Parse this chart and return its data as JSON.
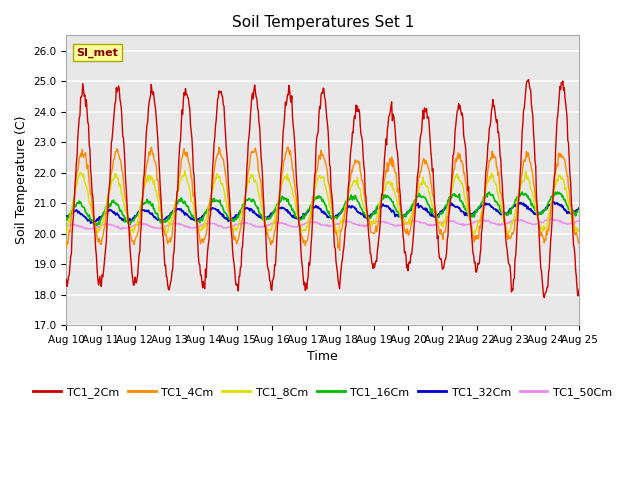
{
  "title": "Soil Temperatures Set 1",
  "xlabel": "Time",
  "ylabel": "Soil Temperature (C)",
  "ylim": [
    17.0,
    26.5
  ],
  "xlim": [
    0,
    15.0
  ],
  "yticks": [
    17.0,
    18.0,
    19.0,
    20.0,
    21.0,
    22.0,
    23.0,
    24.0,
    25.0,
    26.0
  ],
  "xtick_labels": [
    "Aug 10",
    "Aug 11",
    "Aug 12",
    "Aug 13",
    "Aug 14",
    "Aug 15",
    "Aug 16",
    "Aug 17",
    "Aug 18",
    "Aug 19",
    "Aug 20",
    "Aug 21",
    "Aug 22",
    "Aug 23",
    "Aug 24",
    "Aug 25"
  ],
  "annotation_text": "SI_met",
  "series_colors": {
    "TC1_2Cm": "#cc0000",
    "TC1_4Cm": "#ff8800",
    "TC1_8Cm": "#dddd00",
    "TC1_16Cm": "#00bb00",
    "TC1_32Cm": "#0000cc",
    "TC1_50Cm": "#ee88ee"
  },
  "fig_background": "#ffffff",
  "plot_background": "#e8e8e8",
  "title_fontsize": 11,
  "axis_label_fontsize": 9,
  "tick_fontsize": 7.5
}
